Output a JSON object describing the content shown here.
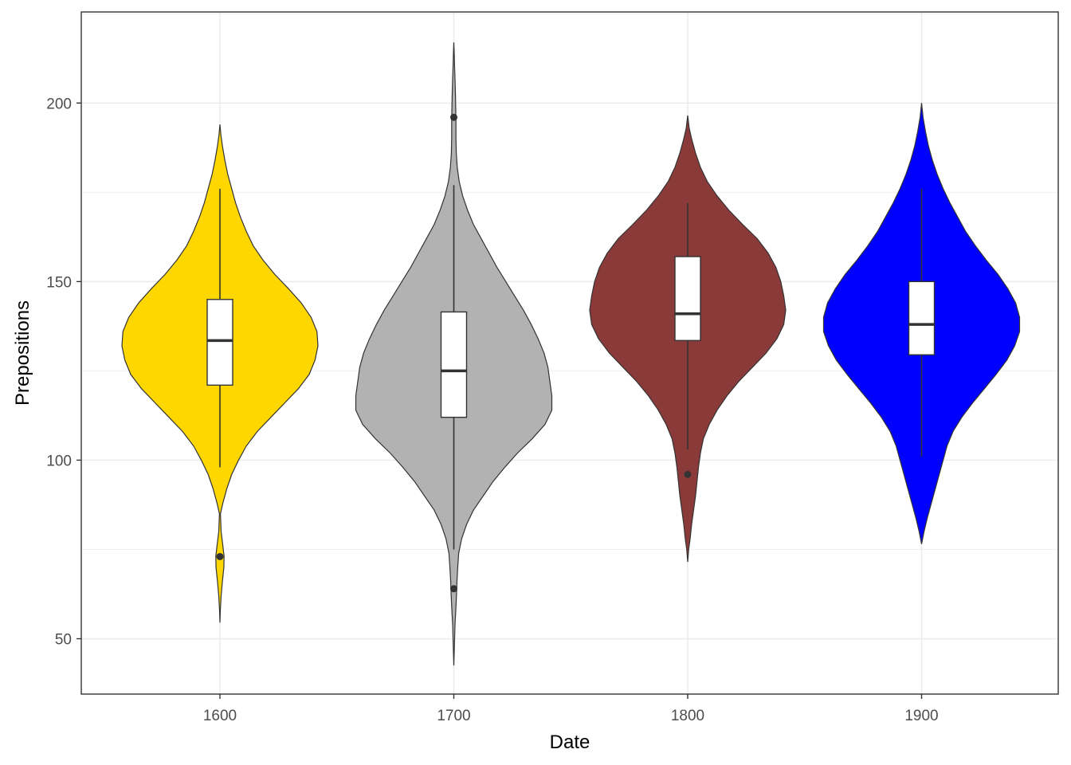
{
  "chart_data": {
    "type": "violin",
    "xlabel": "Date",
    "ylabel": "Prepositions",
    "categories": [
      "1600",
      "1700",
      "1800",
      "1900"
    ],
    "ylim": [
      34.5,
      225.5
    ],
    "yticks": [
      50,
      100,
      150,
      200
    ],
    "grid": true,
    "legend": "none",
    "colors": [
      "#FFD700",
      "#B2B2B2",
      "#8B3A3A",
      "#0000FF"
    ],
    "outline_color": "#333333",
    "groups": [
      {
        "category": "1600",
        "box": {
          "whisker_low": 98,
          "q1": 121,
          "median": 133.5,
          "q3": 145,
          "whisker_high": 176
        },
        "outliers": [
          73
        ],
        "density": [
          [
            54.5,
            0
          ],
          [
            58,
            0.004
          ],
          [
            62,
            0.012
          ],
          [
            66,
            0.025
          ],
          [
            70,
            0.04
          ],
          [
            73,
            0.042
          ],
          [
            76,
            0.03
          ],
          [
            80,
            0.012
          ],
          [
            85,
            0.005
          ],
          [
            88,
            0.03
          ],
          [
            92,
            0.07
          ],
          [
            96,
            0.12
          ],
          [
            100,
            0.19
          ],
          [
            104,
            0.27
          ],
          [
            108,
            0.38
          ],
          [
            112,
            0.52
          ],
          [
            116,
            0.66
          ],
          [
            120,
            0.8
          ],
          [
            124,
            0.91
          ],
          [
            128,
            0.97
          ],
          [
            132,
            1.0
          ],
          [
            136,
            0.99
          ],
          [
            140,
            0.93
          ],
          [
            144,
            0.83
          ],
          [
            148,
            0.7
          ],
          [
            152,
            0.56
          ],
          [
            156,
            0.44
          ],
          [
            160,
            0.34
          ],
          [
            164,
            0.27
          ],
          [
            168,
            0.21
          ],
          [
            172,
            0.16
          ],
          [
            176,
            0.12
          ],
          [
            180,
            0.08
          ],
          [
            184,
            0.05
          ],
          [
            188,
            0.025
          ],
          [
            191,
            0.01
          ],
          [
            194,
            0
          ]
        ]
      },
      {
        "category": "1700",
        "box": {
          "whisker_low": 75,
          "q1": 112,
          "median": 125,
          "q3": 141.5,
          "whisker_high": 177
        },
        "outliers": [
          64,
          196
        ],
        "density": [
          [
            42.5,
            0
          ],
          [
            48,
            0.006
          ],
          [
            54,
            0.012
          ],
          [
            58,
            0.02
          ],
          [
            62,
            0.027
          ],
          [
            66,
            0.032
          ],
          [
            70,
            0.04
          ],
          [
            74,
            0.05
          ],
          [
            78,
            0.08
          ],
          [
            82,
            0.13
          ],
          [
            86,
            0.2
          ],
          [
            90,
            0.3
          ],
          [
            94,
            0.4
          ],
          [
            98,
            0.52
          ],
          [
            102,
            0.65
          ],
          [
            106,
            0.8
          ],
          [
            110,
            0.93
          ],
          [
            114,
            1.0
          ],
          [
            118,
            1.0
          ],
          [
            122,
            0.98
          ],
          [
            126,
            0.96
          ],
          [
            130,
            0.92
          ],
          [
            134,
            0.86
          ],
          [
            138,
            0.79
          ],
          [
            142,
            0.71
          ],
          [
            146,
            0.62
          ],
          [
            150,
            0.53
          ],
          [
            154,
            0.44
          ],
          [
            158,
            0.36
          ],
          [
            162,
            0.28
          ],
          [
            166,
            0.2
          ],
          [
            170,
            0.14
          ],
          [
            174,
            0.09
          ],
          [
            178,
            0.055
          ],
          [
            182,
            0.035
          ],
          [
            186,
            0.025
          ],
          [
            190,
            0.022
          ],
          [
            194,
            0.022
          ],
          [
            198,
            0.02
          ],
          [
            202,
            0.017
          ],
          [
            206,
            0.013
          ],
          [
            210,
            0.008
          ],
          [
            214,
            0.004
          ],
          [
            217,
            0
          ]
        ]
      },
      {
        "category": "1800",
        "box": {
          "whisker_low": 103,
          "q1": 133.5,
          "median": 141,
          "q3": 157,
          "whisker_high": 172
        },
        "outliers": [
          96
        ],
        "density": [
          [
            71.5,
            0
          ],
          [
            75,
            0.01
          ],
          [
            78,
            0.025
          ],
          [
            82,
            0.04
          ],
          [
            86,
            0.06
          ],
          [
            90,
            0.08
          ],
          [
            94,
            0.095
          ],
          [
            98,
            0.11
          ],
          [
            102,
            0.13
          ],
          [
            106,
            0.16
          ],
          [
            110,
            0.22
          ],
          [
            114,
            0.3
          ],
          [
            118,
            0.4
          ],
          [
            122,
            0.52
          ],
          [
            126,
            0.66
          ],
          [
            130,
            0.8
          ],
          [
            134,
            0.91
          ],
          [
            138,
            0.98
          ],
          [
            142,
            1.0
          ],
          [
            146,
            0.98
          ],
          [
            150,
            0.95
          ],
          [
            154,
            0.9
          ],
          [
            158,
            0.82
          ],
          [
            162,
            0.71
          ],
          [
            166,
            0.56
          ],
          [
            170,
            0.42
          ],
          [
            174,
            0.3
          ],
          [
            178,
            0.2
          ],
          [
            182,
            0.13
          ],
          [
            186,
            0.08
          ],
          [
            190,
            0.04
          ],
          [
            193,
            0.015
          ],
          [
            196.5,
            0
          ]
        ]
      },
      {
        "category": "1900",
        "box": {
          "whisker_low": 101,
          "q1": 129.5,
          "median": 138,
          "q3": 150,
          "whisker_high": 176
        },
        "outliers": [],
        "density": [
          [
            76.5,
            0
          ],
          [
            80,
            0.025
          ],
          [
            84,
            0.06
          ],
          [
            88,
            0.1
          ],
          [
            92,
            0.14
          ],
          [
            96,
            0.18
          ],
          [
            100,
            0.22
          ],
          [
            104,
            0.26
          ],
          [
            108,
            0.32
          ],
          [
            112,
            0.41
          ],
          [
            116,
            0.52
          ],
          [
            120,
            0.64
          ],
          [
            124,
            0.76
          ],
          [
            128,
            0.87
          ],
          [
            132,
            0.95
          ],
          [
            136,
            1.0
          ],
          [
            140,
            1.0
          ],
          [
            144,
            0.96
          ],
          [
            148,
            0.88
          ],
          [
            152,
            0.78
          ],
          [
            156,
            0.66
          ],
          [
            160,
            0.55
          ],
          [
            164,
            0.45
          ],
          [
            168,
            0.37
          ],
          [
            172,
            0.29
          ],
          [
            176,
            0.22
          ],
          [
            180,
            0.16
          ],
          [
            184,
            0.11
          ],
          [
            188,
            0.07
          ],
          [
            192,
            0.04
          ],
          [
            196,
            0.015
          ],
          [
            200,
            0
          ]
        ]
      }
    ]
  }
}
